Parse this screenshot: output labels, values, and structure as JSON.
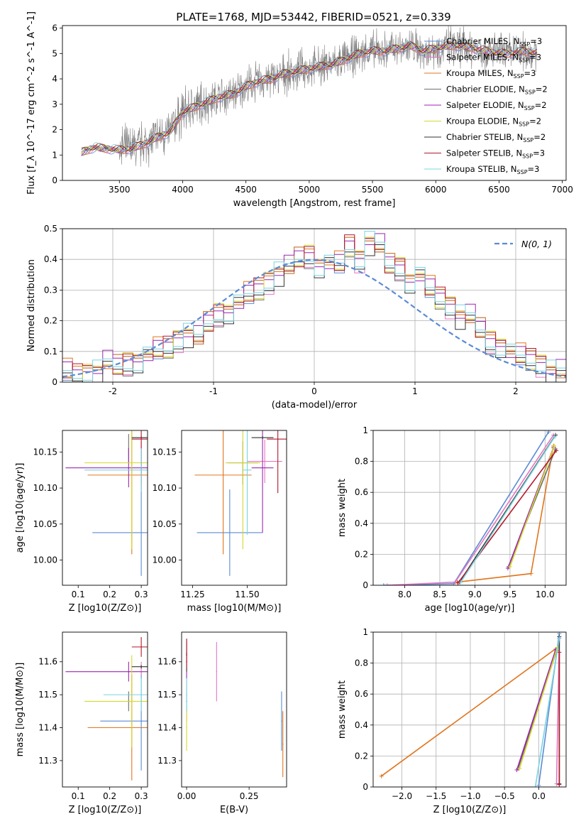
{
  "title": "PLATE=1768, MJD=53442, FIBERID=0521, z=0.339",
  "models": [
    {
      "name": "Chabrier MILES, N$_{SSP}$=3",
      "color": "#5b8bd6"
    },
    {
      "name": "Salpeter MILES, N$_{SSP}$=3",
      "color": "#e377c2"
    },
    {
      "name": "Kroupa MILES, N$_{SSP}$=3",
      "color": "#e0761f"
    },
    {
      "name": "Chabrier ELODIE, N$_{SSP}$=2",
      "color": "#6e6e6e"
    },
    {
      "name": "Salpeter ELODIE, N$_{SSP}$=2",
      "color": "#9b27b0"
    },
    {
      "name": "Kroupa ELODIE, N$_{SSP}$=2",
      "color": "#d4d82a"
    },
    {
      "name": "Chabrier STELIB, N$_{SSP}$=2",
      "color": "#333333"
    },
    {
      "name": "Salpeter STELIB, N$_{SSP}$=3",
      "color": "#b2182b"
    },
    {
      "name": "Kroupa STELIB, N$_{SSP}$=3",
      "color": "#7ad4e0"
    }
  ],
  "chart_data": [
    {
      "id": "spectrum",
      "type": "line",
      "xlabel": "wavelength [Angstrom, rest frame]",
      "ylabel": "Flux [f_λ 10^-17 erg cm^-2 s^-1 A^-1]",
      "xlim": [
        3050,
        7030
      ],
      "ylim": [
        0,
        6.1
      ],
      "xticks": [
        3500,
        4000,
        4500,
        5000,
        5500,
        6000,
        6500,
        7000
      ],
      "yticks": [
        0,
        1,
        2,
        3,
        4,
        5,
        6
      ],
      "x": [
        3200,
        3300,
        3400,
        3500,
        3600,
        3700,
        3800,
        3900,
        4000,
        4100,
        4200,
        4300,
        4400,
        4500,
        4600,
        4700,
        4800,
        4900,
        5000,
        5100,
        5200,
        5300,
        5400,
        5500,
        5600,
        5700,
        5800,
        5900,
        6000,
        6100,
        6200,
        6300,
        6400,
        6500,
        6600,
        6700,
        6800
      ],
      "y": [
        1.1,
        1.3,
        1.25,
        1.2,
        1.25,
        1.45,
        1.7,
        1.9,
        2.7,
        2.9,
        3.1,
        3.3,
        3.4,
        3.7,
        3.9,
        4.0,
        4.2,
        4.3,
        4.4,
        4.5,
        4.6,
        4.8,
        5.0,
        5.1,
        5.1,
        5.2,
        5.3,
        5.1,
        5.2,
        5.3,
        5.3,
        5.2,
        5.1,
        5.0,
        5.0,
        5.1,
        5.0
      ],
      "legend": "top-right"
    },
    {
      "id": "residuals",
      "type": "bar",
      "xlabel": "(data-model)/error",
      "ylabel": "Normed distribution",
      "xlim": [
        -2.5,
        2.5
      ],
      "ylim": [
        0,
        0.5
      ],
      "xticks": [
        -2,
        -1,
        0,
        1,
        2
      ],
      "yticks": [
        0.0,
        0.1,
        0.2,
        0.3,
        0.4,
        0.5
      ],
      "bin_start": -2.5,
      "bin_width": 0.1,
      "values": [
        0.03,
        0.02,
        0.03,
        0.04,
        0.06,
        0.05,
        0.06,
        0.07,
        0.09,
        0.1,
        0.11,
        0.14,
        0.16,
        0.14,
        0.19,
        0.22,
        0.23,
        0.26,
        0.28,
        0.3,
        0.33,
        0.36,
        0.37,
        0.4,
        0.41,
        0.38,
        0.39,
        0.38,
        0.44,
        0.4,
        0.46,
        0.44,
        0.38,
        0.37,
        0.33,
        0.35,
        0.3,
        0.27,
        0.25,
        0.22,
        0.21,
        0.17,
        0.13,
        0.12,
        0.1,
        0.08,
        0.07,
        0.06,
        0.04,
        0.03
      ],
      "gauss_label": "N(0, 1)",
      "legend": "top-right",
      "grid": true
    },
    {
      "id": "age-vs-z",
      "type": "errorbar",
      "xlabel": "Z [log10(Z/Z⊙)]",
      "ylabel": "age  [log10(age/yr)]",
      "xlim": [
        0.05,
        0.32
      ],
      "ylim": [
        9.965,
        10.18
      ],
      "xticks": [
        0.1,
        0.2,
        0.3
      ],
      "xtick_labels": [
        "0.1",
        "0.2",
        "0.3"
      ],
      "yticks": [
        10.0,
        10.05,
        10.1,
        10.15
      ],
      "ytick_labels": [
        "10.00",
        "10.05",
        "10.10",
        "10.15"
      ],
      "points": [
        {
          "model": 0,
          "x": 0.3,
          "y": 10.038,
          "xerr": 0.155,
          "yerr": 0.06
        },
        {
          "model": 1,
          "x": 0.3,
          "y": 10.135,
          "xerr": 0.0,
          "yerr": 0.03
        },
        {
          "model": 2,
          "x": 0.27,
          "y": 10.118,
          "xerr": 0.14,
          "yerr": 0.11
        },
        {
          "model": 3,
          "x": 0.26,
          "y": 10.155,
          "xerr": 0.0,
          "yerr": 0.02
        },
        {
          "model": 4,
          "x": 0.26,
          "y": 10.128,
          "xerr": 0.2,
          "yerr": 0.027
        },
        {
          "model": 5,
          "x": 0.27,
          "y": 10.135,
          "xerr": 0.15,
          "yerr": 0.12
        },
        {
          "model": 6,
          "x": 0.3,
          "y": 10.17,
          "xerr": 0.03,
          "yerr": 0.002
        },
        {
          "model": 7,
          "x": 0.3,
          "y": 10.168,
          "xerr": 0.03,
          "yerr": 0.07
        },
        {
          "model": 8,
          "x": 0.3,
          "y": 10.125,
          "xerr": 0.18,
          "yerr": 0.03
        }
      ]
    },
    {
      "id": "age-vs-mass",
      "type": "errorbar",
      "xlabel": "mass [log10(M/M⊙)]",
      "ylabel": "",
      "xlim": [
        11.2,
        11.68
      ],
      "ylim": [
        9.965,
        10.18
      ],
      "xticks": [
        11.25,
        11.5
      ],
      "xtick_labels": [
        "11.25",
        "11.50"
      ],
      "yticks": [
        10.0,
        10.05,
        10.1,
        10.15
      ],
      "ytick_labels": [
        "10.00",
        "10.05",
        "10.10",
        "10.15"
      ],
      "points": [
        {
          "model": 0,
          "x": 11.42,
          "y": 10.038,
          "xerr": 0.15,
          "yerr": 0.06
        },
        {
          "model": 1,
          "x": 11.58,
          "y": 10.137,
          "xerr": 0.08,
          "yerr": 0.03
        },
        {
          "model": 2,
          "x": 11.39,
          "y": 10.118,
          "xerr": 0.13,
          "yerr": 0.11
        },
        {
          "model": 3,
          "x": 11.48,
          "y": 10.135,
          "xerr": 0.07,
          "yerr": 0.03
        },
        {
          "model": 4,
          "x": 11.57,
          "y": 10.128,
          "xerr": 0.05,
          "yerr": 0.09
        },
        {
          "model": 5,
          "x": 11.48,
          "y": 10.135,
          "xerr": 0.08,
          "yerr": 0.12
        },
        {
          "model": 6,
          "x": 11.57,
          "y": 10.17,
          "xerr": 0.05,
          "yerr": 0.002
        },
        {
          "model": 7,
          "x": 11.64,
          "y": 10.168,
          "xerr": 0.05,
          "yerr": 0.075
        },
        {
          "model": 8,
          "x": 11.5,
          "y": 10.125,
          "xerr": 0.02,
          "yerr": 0.09
        }
      ]
    },
    {
      "id": "weight-vs-age",
      "type": "line",
      "xlabel": "age  [log10(age/yr)]",
      "ylabel": "mass weight",
      "xlim": [
        7.55,
        10.3
      ],
      "ylim": [
        0,
        1
      ],
      "xticks": [
        8.0,
        8.5,
        9.0,
        9.5,
        10.0
      ],
      "xtick_labels": [
        "8.0",
        "8.5",
        "9.0",
        "9.5",
        "10.0"
      ],
      "yticks": [
        0.0,
        0.2,
        0.4,
        0.6,
        0.8,
        1.0
      ],
      "grid": true,
      "series": [
        {
          "model": 0,
          "x": [
            7.7,
            8.7,
            10.05
          ],
          "y": [
            0.0,
            0.01,
            0.99
          ]
        },
        {
          "model": 1,
          "x": [
            7.75,
            8.72,
            10.12
          ],
          "y": [
            0.0,
            0.02,
            0.97
          ]
        },
        {
          "model": 2,
          "x": [
            8.75,
            9.8,
            10.12
          ],
          "y": [
            0.02,
            0.075,
            0.9
          ]
        },
        {
          "model": 3,
          "x": [
            9.48,
            10.15
          ],
          "y": [
            0.12,
            0.88
          ]
        },
        {
          "model": 4,
          "x": [
            9.47,
            10.12
          ],
          "y": [
            0.11,
            0.89
          ]
        },
        {
          "model": 5,
          "x": [
            9.5,
            10.13
          ],
          "y": [
            0.12,
            0.9
          ]
        },
        {
          "model": 6,
          "x": [
            8.78,
            10.15
          ],
          "y": [
            0.02,
            0.97
          ]
        },
        {
          "model": 7,
          "x": [
            8.76,
            10.16
          ],
          "y": [
            0.015,
            0.87
          ]
        },
        {
          "model": 8,
          "x": [
            8.8,
            10.14
          ],
          "y": [
            0.02,
            0.96
          ]
        }
      ]
    },
    {
      "id": "mass-vs-z",
      "type": "errorbar",
      "xlabel": "Z [log10(Z/Z⊙)]",
      "ylabel": "mass [log10(M/M⊙)]",
      "xlim": [
        0.05,
        0.32
      ],
      "ylim": [
        11.22,
        11.69
      ],
      "xticks": [
        0.1,
        0.2,
        0.3
      ],
      "xtick_labels": [
        "0.1",
        "0.2",
        "0.3"
      ],
      "yticks": [
        11.3,
        11.4,
        11.5,
        11.6
      ],
      "ytick_labels": [
        "11.3",
        "11.4",
        "11.5",
        "11.6"
      ],
      "points": [
        {
          "model": 0,
          "x": 0.3,
          "y": 11.42,
          "xerr": 0.13,
          "yerr": 0.15
        },
        {
          "model": 1,
          "x": 0.3,
          "y": 11.58,
          "xerr": 0.0,
          "yerr": 0.02
        },
        {
          "model": 2,
          "x": 0.27,
          "y": 11.4,
          "xerr": 0.14,
          "yerr": 0.16
        },
        {
          "model": 3,
          "x": 0.26,
          "y": 11.48,
          "xerr": 0.0,
          "yerr": 0.03
        },
        {
          "model": 4,
          "x": 0.26,
          "y": 11.57,
          "xerr": 0.2,
          "yerr": 0.03
        },
        {
          "model": 5,
          "x": 0.27,
          "y": 11.48,
          "xerr": 0.15,
          "yerr": 0.14
        },
        {
          "model": 6,
          "x": 0.3,
          "y": 11.585,
          "xerr": 0.03,
          "yerr": 0.005
        },
        {
          "model": 7,
          "x": 0.3,
          "y": 11.645,
          "xerr": 0.03,
          "yerr": 0.03
        },
        {
          "model": 8,
          "x": 0.3,
          "y": 11.5,
          "xerr": 0.12,
          "yerr": 0.05
        }
      ]
    },
    {
      "id": "mass-vs-ebv",
      "type": "errorbar",
      "xlabel": "E(B-V)",
      "ylabel": "",
      "xlim": [
        -0.02,
        0.4
      ],
      "ylim": [
        11.22,
        11.69
      ],
      "xticks": [
        0.0,
        0.25
      ],
      "xtick_labels": [
        "0.00",
        "0.25"
      ],
      "yticks": [
        11.3,
        11.4,
        11.5,
        11.6
      ],
      "ytick_labels": [
        "11.3",
        "11.4",
        "11.5",
        "11.6"
      ],
      "points": [
        {
          "model": 0,
          "x": 0.38,
          "y": 11.42,
          "xerr": 0.0,
          "yerr": 0.09
        },
        {
          "model": 1,
          "x": 0.12,
          "y": 11.57,
          "xerr": 0.0,
          "yerr": 0.09
        },
        {
          "model": 2,
          "x": 0.385,
          "y": 11.35,
          "xerr": 0.0,
          "yerr": 0.1
        },
        {
          "model": 3,
          "x": 0.0,
          "y": 11.48,
          "xerr": 0.0,
          "yerr": 0.06
        },
        {
          "model": 4,
          "x": 0.0,
          "y": 11.6,
          "xerr": 0.0,
          "yerr": 0.06
        },
        {
          "model": 5,
          "x": 0.0,
          "y": 11.4,
          "xerr": 0.0,
          "yerr": 0.07
        },
        {
          "model": 6,
          "x": 0.0,
          "y": 11.62,
          "xerr": 0.0,
          "yerr": 0.05
        },
        {
          "model": 7,
          "x": 0.0,
          "y": 11.625,
          "xerr": 0.0,
          "yerr": 0.045
        },
        {
          "model": 8,
          "x": 0.0,
          "y": 11.5,
          "xerr": 0.0,
          "yerr": 0.05
        }
      ]
    },
    {
      "id": "weight-vs-z",
      "type": "line",
      "xlabel": "Z [log10(Z/Z⊙)]",
      "ylabel": "mass weight",
      "xlim": [
        -2.42,
        0.4
      ],
      "ylim": [
        0,
        1
      ],
      "xticks": [
        -2.0,
        -1.5,
        -1.0,
        -0.5,
        0.0
      ],
      "xtick_labels": [
        "−2.0",
        "−1.5",
        "−1.0",
        "−0.5",
        "0.0"
      ],
      "yticks": [
        0.0,
        0.2,
        0.4,
        0.6,
        0.8,
        1.0
      ],
      "grid": true,
      "series": [
        {
          "model": 0,
          "x": [
            0.0,
            0.3
          ],
          "y": [
            0.01,
            0.99
          ]
        },
        {
          "model": 1,
          "x": [
            0.26,
            0.3
          ],
          "y": [
            0.02,
            0.96
          ]
        },
        {
          "model": 2,
          "x": [
            -2.3,
            0.27
          ],
          "y": [
            0.07,
            0.9
          ]
        },
        {
          "model": 3,
          "x": [
            -0.3,
            0.26
          ],
          "y": [
            0.12,
            0.88
          ]
        },
        {
          "model": 4,
          "x": [
            -0.32,
            0.25
          ],
          "y": [
            0.11,
            0.89
          ]
        },
        {
          "model": 5,
          "x": [
            -0.28,
            0.27
          ],
          "y": [
            0.12,
            0.9
          ]
        },
        {
          "model": 6,
          "x": [
            0.3,
            0.3
          ],
          "y": [
            0.02,
            0.97
          ]
        },
        {
          "model": 7,
          "x": [
            0.3,
            0.3
          ],
          "y": [
            0.015,
            0.87
          ]
        },
        {
          "model": 8,
          "x": [
            -0.05,
            0.3
          ],
          "y": [
            0.0,
            0.96
          ]
        }
      ]
    }
  ]
}
